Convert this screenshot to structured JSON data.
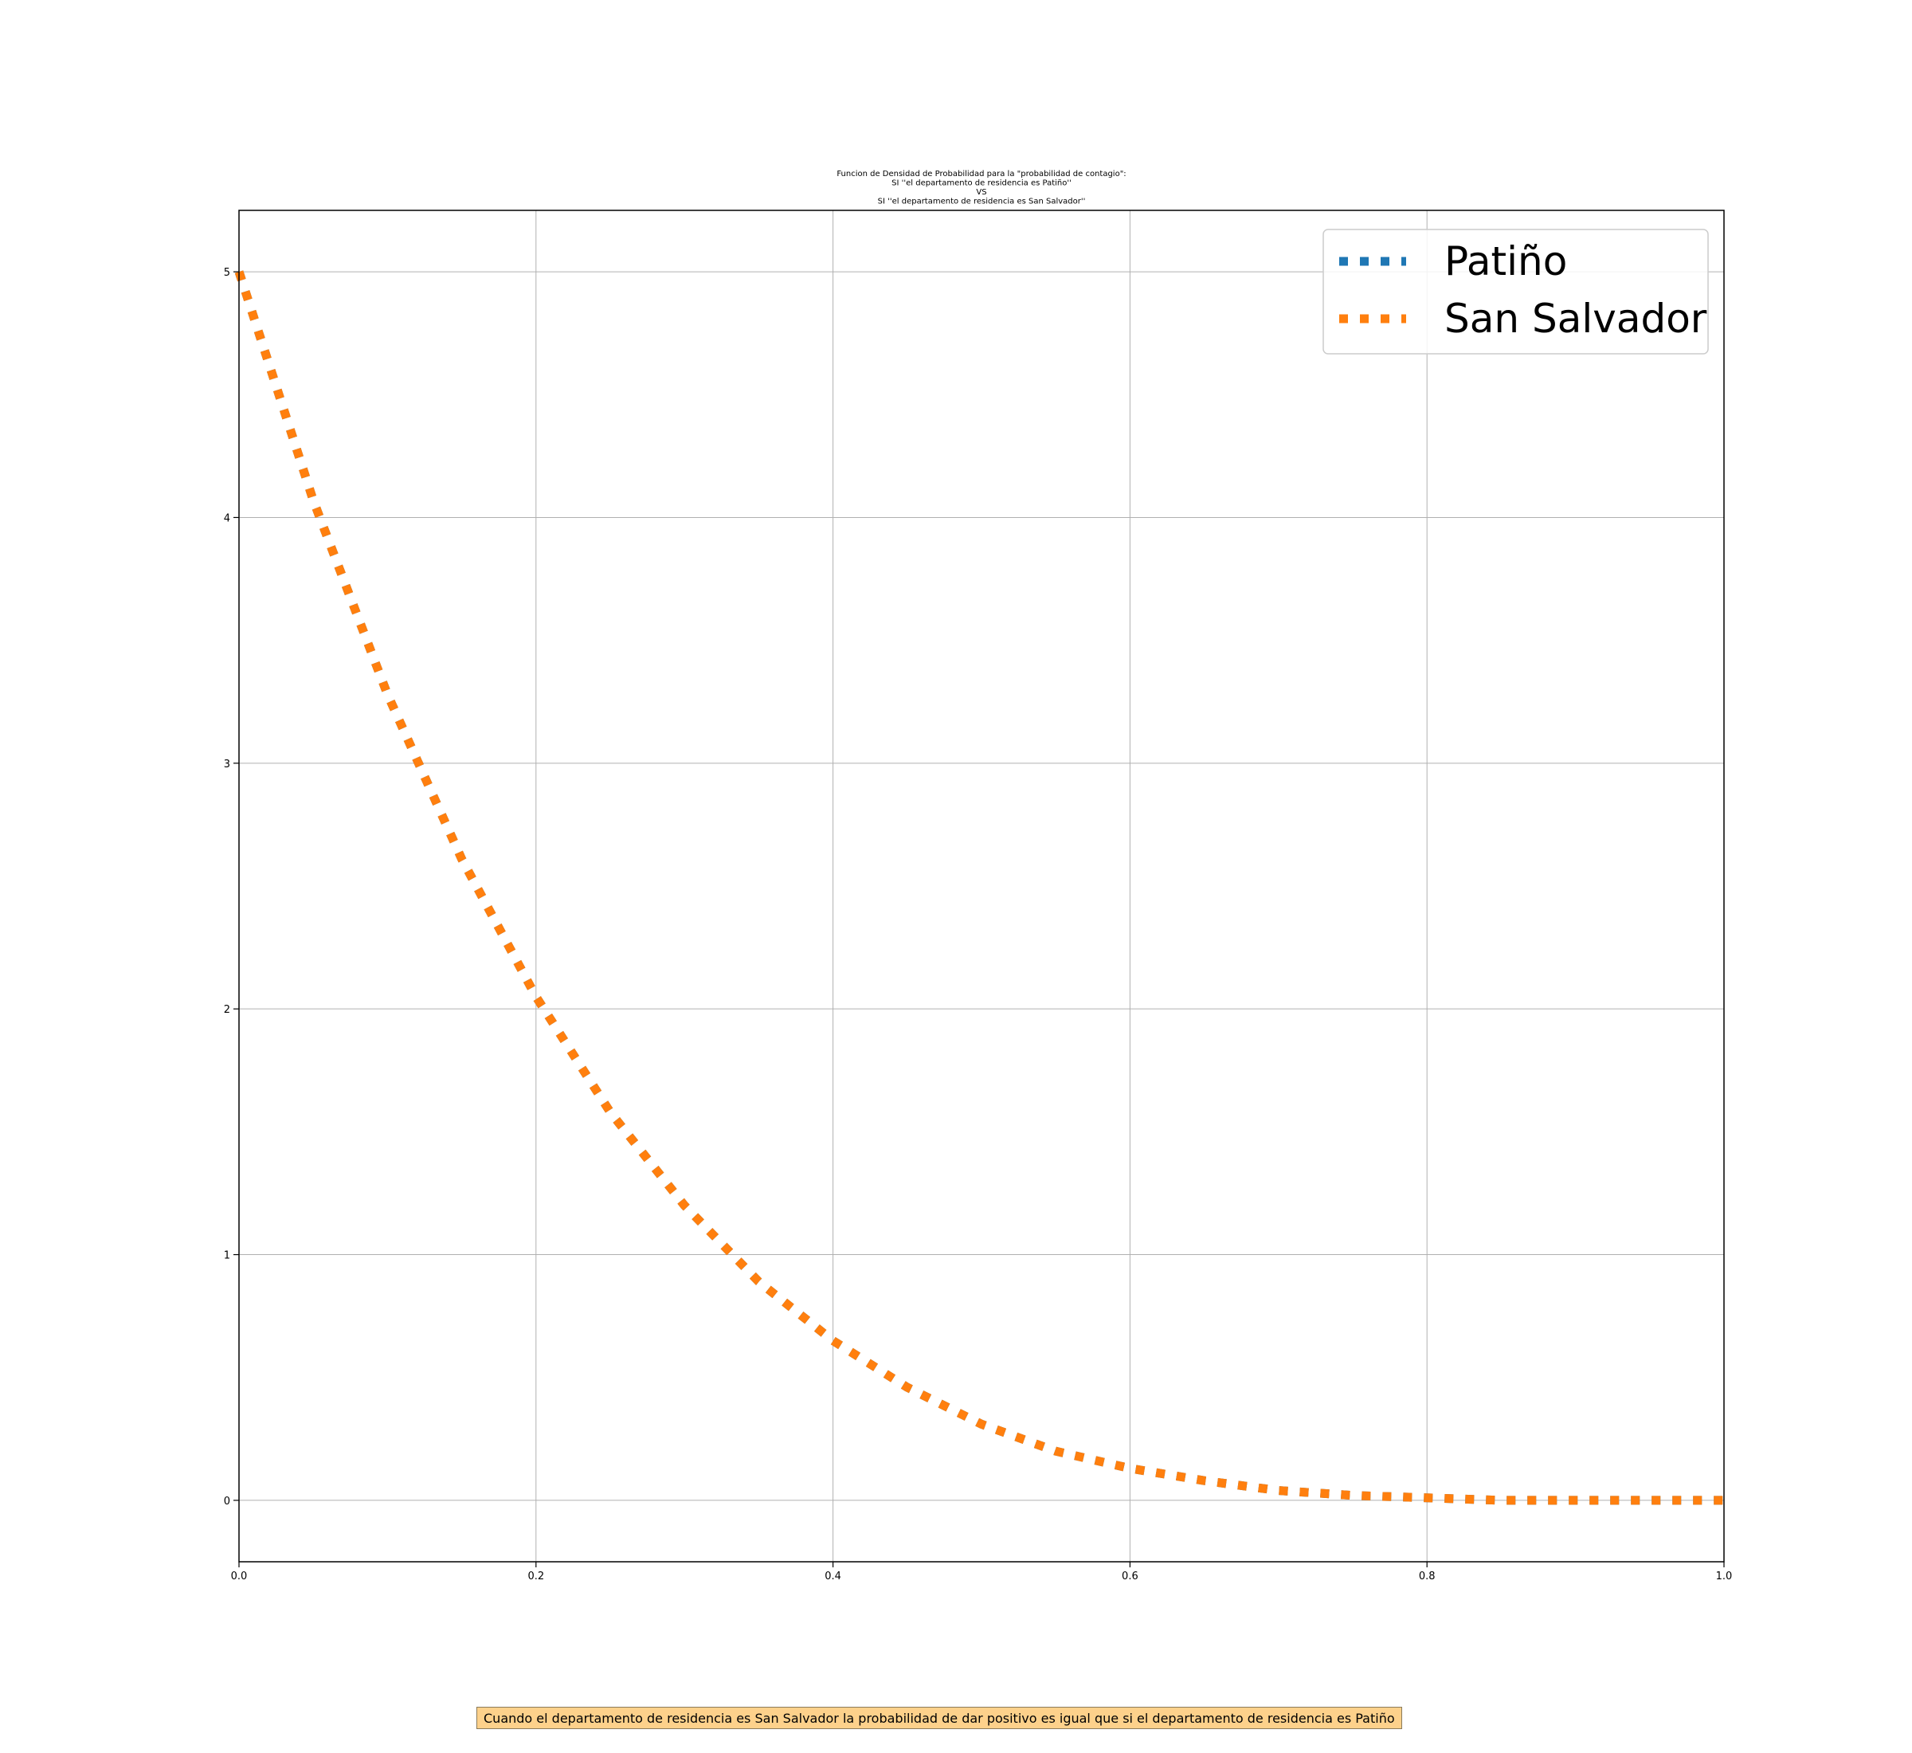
{
  "chart_data": {
    "type": "line",
    "title_lines": [
      "Funcion de Densidad de Probabilidad para la \"probabilidad de contagio\":",
      "SI ''el departamento de residencia es Patiño''",
      "VS",
      "SI ''el departamento de residencia es San Salvador''"
    ],
    "xlim": [
      0.0,
      1.0
    ],
    "ylim": [
      -0.25,
      5.25
    ],
    "x_ticks": [
      "0.0",
      "0.2",
      "0.4",
      "0.6",
      "0.8",
      "1.0"
    ],
    "y_ticks": [
      "0",
      "1",
      "2",
      "3",
      "4",
      "5"
    ],
    "grid": true,
    "legend_position": "top-right",
    "series": [
      {
        "name": "Patiño",
        "color": "#1f77b4",
        "style": "dotted",
        "x": [
          0.0,
          0.05,
          0.1,
          0.15,
          0.2,
          0.25,
          0.3,
          0.35,
          0.4,
          0.45,
          0.5,
          0.55,
          0.6,
          0.65,
          0.7,
          0.75,
          0.8,
          0.85,
          0.9,
          0.95,
          1.0
        ],
        "y": [
          5.0,
          4.07,
          3.28,
          2.61,
          2.05,
          1.58,
          1.2,
          0.89,
          0.65,
          0.46,
          0.31,
          0.2,
          0.13,
          0.08,
          0.04,
          0.02,
          0.01,
          0.0,
          0.0,
          0.0,
          0.0
        ]
      },
      {
        "name": "San Salvador",
        "color": "#ff7f0e",
        "style": "dotted",
        "x": [
          0.0,
          0.05,
          0.1,
          0.15,
          0.2,
          0.25,
          0.3,
          0.35,
          0.4,
          0.45,
          0.5,
          0.55,
          0.6,
          0.65,
          0.7,
          0.75,
          0.8,
          0.85,
          0.9,
          0.95,
          1.0
        ],
        "y": [
          5.0,
          4.07,
          3.28,
          2.61,
          2.05,
          1.58,
          1.2,
          0.89,
          0.65,
          0.46,
          0.31,
          0.2,
          0.13,
          0.08,
          0.04,
          0.02,
          0.01,
          0.0,
          0.0,
          0.0,
          0.0
        ]
      }
    ],
    "annotation": "Cuando el departamento de residencia es San Salvador la probabilidad de dar positivo es igual que si el departamento de residencia es Patiño"
  }
}
